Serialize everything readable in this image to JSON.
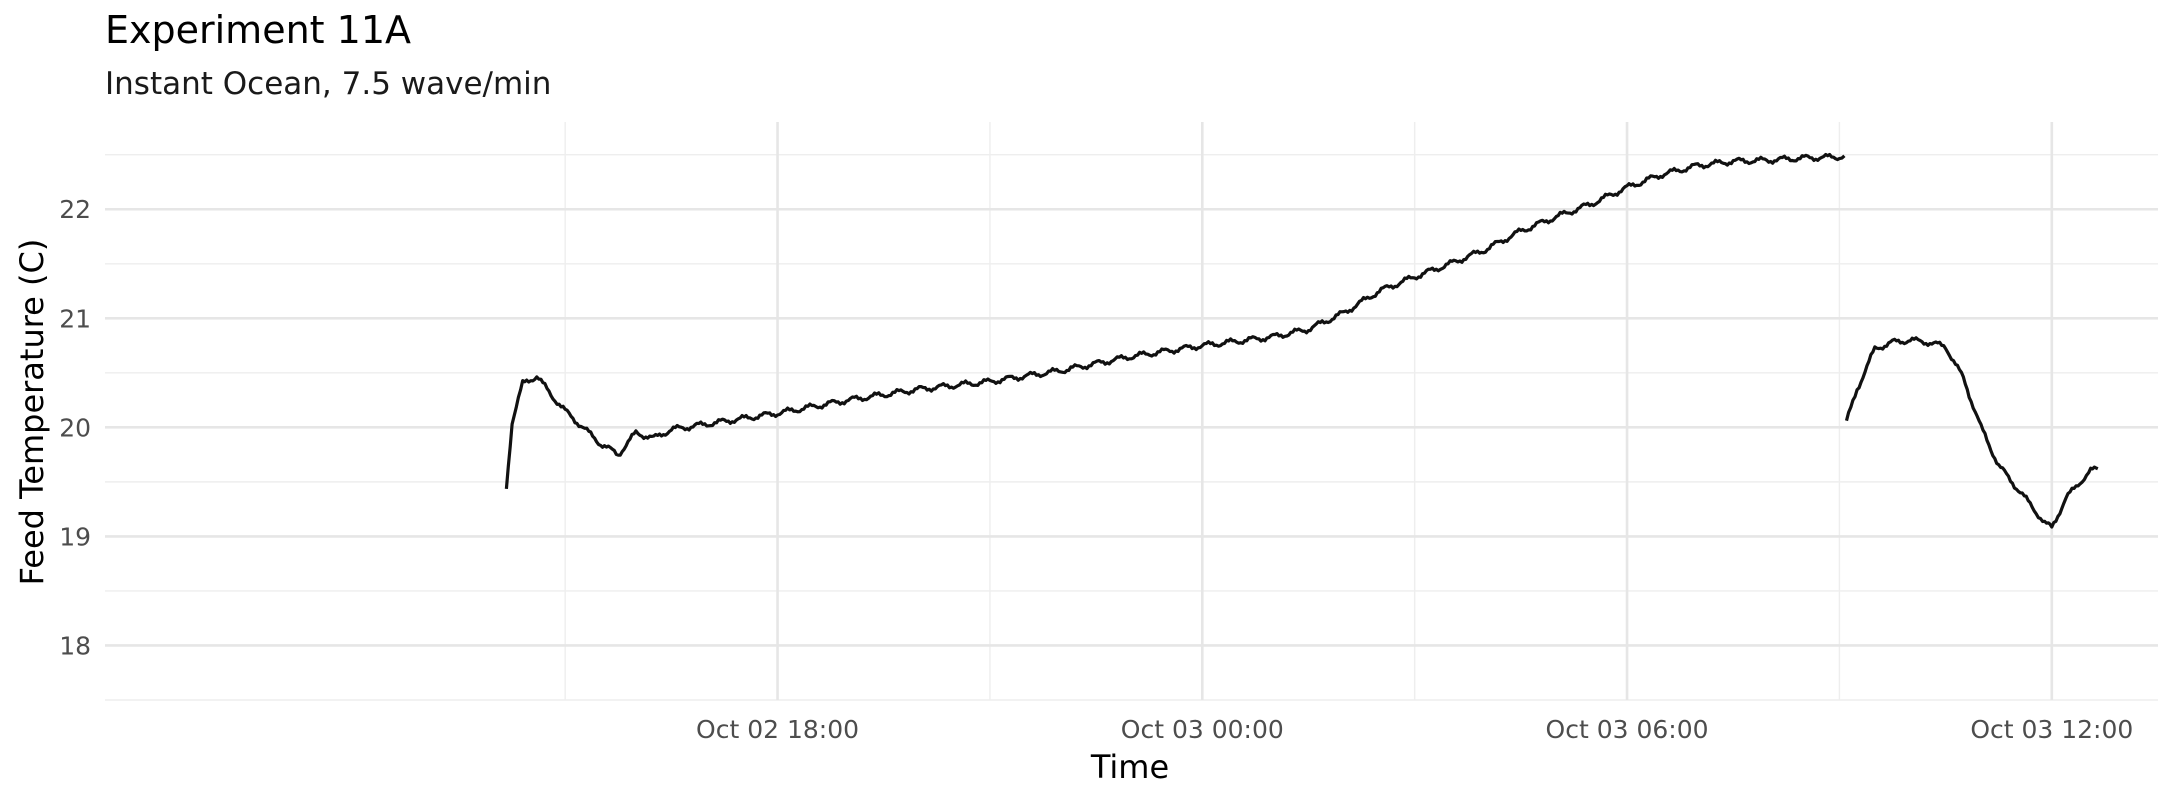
{
  "chart_data": {
    "type": "line",
    "title": "Experiment 11A",
    "subtitle": "Instant Ocean, 7.5 wave/min",
    "xlabel": "Time",
    "ylabel": "Feed Temperature (C)",
    "x_unit": "hours relative to Oct 03 00:00",
    "xlim": [
      -15.5,
      13.5
    ],
    "ylim": [
      17.5,
      22.8
    ],
    "x_ticks": [
      {
        "value": -6,
        "label": "Oct 02 18:00"
      },
      {
        "value": 0,
        "label": "Oct 03 00:00"
      },
      {
        "value": 6,
        "label": "Oct 03 06:00"
      },
      {
        "value": 12,
        "label": "Oct 03 12:00"
      }
    ],
    "x_minor_ticks": [
      -9,
      -3,
      3,
      9
    ],
    "y_ticks": [
      18,
      19,
      20,
      21,
      22
    ],
    "y_minor_ticks": [
      17.5,
      18.5,
      19.5,
      20.5,
      21.5,
      22.5
    ],
    "grid": true,
    "series": [
      {
        "segments": [
          {
            "x": [
              -9.83,
              -9.75,
              -9.6,
              -9.4,
              -9.2,
              -9.0,
              -8.75,
              -8.5,
              -8.25,
              -8.0,
              -7.75,
              -7.5,
              -7.0,
              -6.5,
              -6.0,
              -5.0,
              -4.0,
              -3.0,
              -2.0,
              -1.0,
              0.0,
              1.0,
              1.5,
              2.0,
              2.5,
              3.0,
              3.5,
              4.0,
              4.5,
              5.0,
              5.5,
              6.0,
              6.5,
              7.0,
              7.5,
              8.0,
              8.5,
              9.0,
              9.07
            ],
            "y": [
              19.45,
              20.05,
              20.4,
              20.47,
              20.3,
              20.15,
              20.0,
              19.85,
              19.75,
              19.95,
              19.9,
              19.98,
              20.03,
              20.08,
              20.13,
              20.25,
              20.35,
              20.42,
              20.52,
              20.65,
              20.75,
              20.83,
              20.9,
              21.05,
              21.25,
              21.38,
              21.5,
              21.63,
              21.8,
              21.93,
              22.05,
              22.2,
              22.32,
              22.4,
              22.44,
              22.45,
              22.47,
              22.48,
              22.49
            ]
          },
          {
            "x": [
              9.1,
              9.25,
              9.5,
              9.75,
              10.0,
              10.25,
              10.5,
              10.75,
              11.0,
              11.25,
              11.5,
              11.75,
              11.9,
              12.0,
              12.2,
              12.4,
              12.55,
              12.65
            ],
            "y": [
              20.05,
              20.35,
              20.72,
              20.78,
              20.8,
              20.78,
              20.74,
              20.45,
              20.0,
              19.65,
              19.45,
              19.25,
              19.12,
              19.08,
              19.35,
              19.5,
              19.6,
              19.62
            ]
          }
        ]
      }
    ]
  }
}
